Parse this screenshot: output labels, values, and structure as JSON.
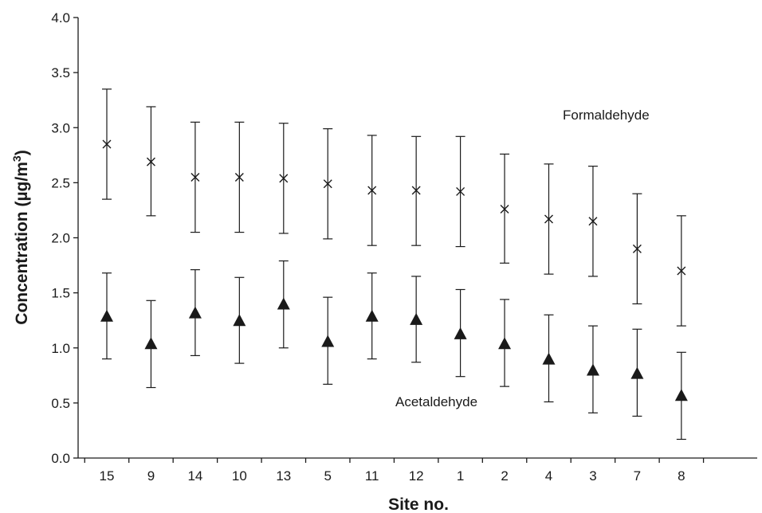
{
  "chart_data": {
    "type": "scatter",
    "title": "",
    "xlabel": "Site no.",
    "ylabel_main": "Concentration (µg/m",
    "ylabel_sup": "3",
    "ylabel_close": ")",
    "ylim": [
      0,
      4.0
    ],
    "yticks": [
      "0.0",
      "0.5",
      "1.0",
      "1.5",
      "2.0",
      "2.5",
      "3.0",
      "3.5",
      "4.0"
    ],
    "categories": [
      "15",
      "9",
      "14",
      "10",
      "13",
      "5",
      "11",
      "12",
      "1",
      "2",
      "4",
      "3",
      "7",
      "8"
    ],
    "grid": false,
    "legend": "none",
    "series": [
      {
        "name": "Formaldehyde",
        "marker": "x",
        "values": [
          2.85,
          2.69,
          2.55,
          2.55,
          2.54,
          2.49,
          2.43,
          2.43,
          2.42,
          2.26,
          2.17,
          2.15,
          1.9,
          1.7
        ],
        "err_low": [
          2.35,
          2.2,
          2.05,
          2.05,
          2.04,
          1.99,
          1.93,
          1.93,
          1.92,
          1.77,
          1.67,
          1.65,
          1.4,
          1.2
        ],
        "err_high": [
          3.35,
          3.19,
          3.05,
          3.05,
          3.04,
          2.99,
          2.93,
          2.92,
          2.92,
          2.76,
          2.67,
          2.65,
          2.4,
          2.2
        ]
      },
      {
        "name": "Acetaldehyde",
        "marker": "triangle",
        "values": [
          1.28,
          1.03,
          1.31,
          1.24,
          1.39,
          1.05,
          1.28,
          1.25,
          1.12,
          1.03,
          0.89,
          0.79,
          0.76,
          0.56
        ],
        "err_low": [
          0.9,
          0.64,
          0.93,
          0.86,
          1.0,
          0.67,
          0.9,
          0.87,
          0.74,
          0.65,
          0.51,
          0.41,
          0.38,
          0.17
        ],
        "err_high": [
          1.68,
          1.43,
          1.71,
          1.64,
          1.79,
          1.46,
          1.68,
          1.65,
          1.53,
          1.44,
          1.3,
          1.2,
          1.17,
          0.96
        ]
      }
    ]
  }
}
